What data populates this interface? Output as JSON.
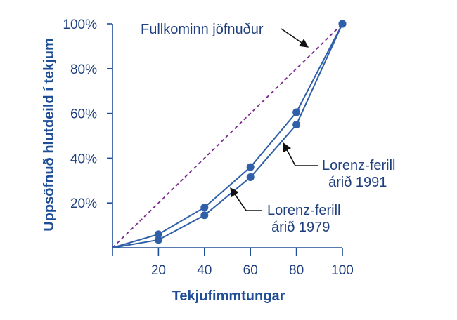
{
  "chart_data": {
    "type": "line",
    "xlabel": "Tekjufimmtungar",
    "ylabel": "Uppsöfnuð hlutdeild í tekjum",
    "xlim": [
      0,
      100
    ],
    "ylim": [
      0,
      100
    ],
    "x_ticks": [
      "20",
      "40",
      "60",
      "80",
      "100"
    ],
    "y_ticks": [
      "20%",
      "40%",
      "60%",
      "80%",
      "100%"
    ],
    "series": [
      {
        "name": "Lorenz-ferill árið 1979",
        "x": [
          0,
          20,
          40,
          60,
          80,
          100
        ],
        "y": [
          0,
          6.0,
          18.0,
          36.0,
          60.5,
          100
        ],
        "color": "#2e5fa8"
      },
      {
        "name": "Lorenz-ferill árið 1991",
        "x": [
          0,
          20,
          40,
          60,
          80,
          100
        ],
        "y": [
          0,
          3.5,
          14.5,
          31.5,
          55.0,
          100
        ],
        "color": "#2e5fa8"
      }
    ],
    "equality_line": {
      "label": "Fullkominn jöfnuður",
      "x": [
        0,
        100
      ],
      "y": [
        0,
        100
      ],
      "color": "#7b2a8f"
    },
    "annotations": [
      {
        "lines": [
          "Fullkominn jöfnuður"
        ],
        "target": "equality_line"
      },
      {
        "lines": [
          "Lorenz-ferill",
          "árið 1991"
        ],
        "target": "series_1991"
      },
      {
        "lines": [
          "Lorenz-ferill",
          "árið 1979"
        ],
        "target": "series_1979"
      }
    ],
    "grid": false,
    "axis_color": "#1f4e96"
  }
}
